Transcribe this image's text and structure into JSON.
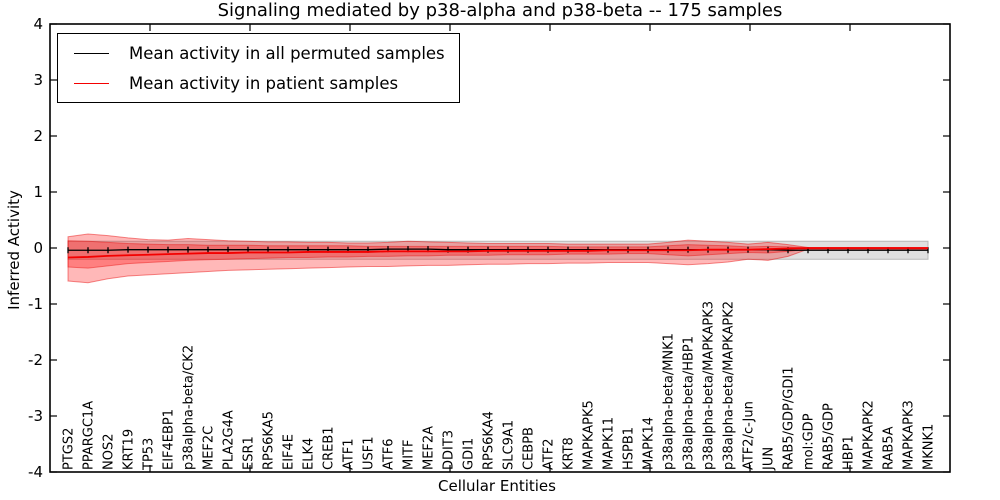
{
  "chart_data": {
    "type": "line",
    "title": "Signaling mediated by p38-alpha and p38-beta -- 175 samples",
    "xlabel": "Cellular Entities",
    "ylabel": "Inferred Activity",
    "ylim": [
      -4,
      4
    ],
    "yticks": [
      -4,
      -3,
      -2,
      -1,
      0,
      1,
      2,
      3,
      4
    ],
    "grid": false,
    "legend_position": "upper left",
    "categories": [
      "PTGS2",
      "PPARGC1A",
      "NOS2",
      "KRT19",
      "TP53",
      "EIF4EBP1",
      "p38alpha-beta/CK2",
      "MEF2C",
      "PLA2G4A",
      "ESR1",
      "RPS6KA5",
      "EIF4E",
      "ELK4",
      "CREB1",
      "ATF1",
      "USF1",
      "ATF6",
      "MITF",
      "MEF2A",
      "DDIT3",
      "GDI1",
      "RPS6KA4",
      "SLC9A1",
      "CEBPB",
      "ATF2",
      "KRT8",
      "MAPKAPK5",
      "MAPK11",
      "HSPB1",
      "MAPK14",
      "p38alpha-beta/MNK1",
      "p38alpha-beta/HBP1",
      "p38alpha-beta/MAPKAPK3",
      "p38alpha-beta/MAPKAPK2",
      "ATF2/c-Jun",
      "JUN",
      "RAB5/GDP/GDI1",
      "mol:GDP",
      "RAB5/GDP",
      "HBP1",
      "MAPKAPK2",
      "RAB5A",
      "MAPKAPK3",
      "MKNK1"
    ],
    "series": [
      {
        "name": "Mean activity in all permuted samples",
        "color": "#000000",
        "marker": "vline",
        "values": [
          -0.04,
          -0.04,
          -0.04,
          -0.03,
          -0.03,
          -0.03,
          -0.03,
          -0.03,
          -0.03,
          -0.03,
          -0.03,
          -0.03,
          -0.03,
          -0.03,
          -0.03,
          -0.03,
          -0.02,
          -0.02,
          -0.02,
          -0.03,
          -0.03,
          -0.03,
          -0.03,
          -0.03,
          -0.03,
          -0.03,
          -0.03,
          -0.03,
          -0.03,
          -0.03,
          -0.03,
          -0.03,
          -0.03,
          -0.03,
          -0.03,
          -0.03,
          -0.04,
          -0.04,
          -0.04,
          -0.04,
          -0.04,
          -0.04,
          -0.04,
          -0.04
        ]
      },
      {
        "name": "Mean activity in patient samples",
        "color": "#f40000",
        "marker": "none",
        "values": [
          -0.17,
          -0.16,
          -0.14,
          -0.13,
          -0.12,
          -0.11,
          -0.1,
          -0.09,
          -0.09,
          -0.08,
          -0.08,
          -0.08,
          -0.07,
          -0.07,
          -0.07,
          -0.07,
          -0.06,
          -0.06,
          -0.06,
          -0.06,
          -0.06,
          -0.05,
          -0.05,
          -0.05,
          -0.05,
          -0.05,
          -0.05,
          -0.04,
          -0.04,
          -0.04,
          -0.04,
          -0.04,
          -0.03,
          -0.03,
          -0.03,
          -0.02,
          -0.01,
          0.0,
          0.0,
          0.0,
          0.0,
          0.0,
          0.0,
          0.0
        ]
      }
    ],
    "bands": [
      {
        "name": "permuted-samples-std-band",
        "fill": "#e0e0e0",
        "stroke": "#b8b8b8",
        "upper": 0.12,
        "lower": -0.2
      },
      {
        "name": "patient-samples-outer-band",
        "fill": "rgba(255,0,0,0.28)",
        "stroke": "rgba(230,0,0,0.45)",
        "upper": [
          0.2,
          0.25,
          0.22,
          0.18,
          0.15,
          0.14,
          0.17,
          0.15,
          0.13,
          0.12,
          0.11,
          0.11,
          0.1,
          0.1,
          0.09,
          0.09,
          0.1,
          0.12,
          0.11,
          0.1,
          0.09,
          0.08,
          0.08,
          0.08,
          0.08,
          0.07,
          0.07,
          0.07,
          0.07,
          0.07,
          0.1,
          0.14,
          0.12,
          0.1,
          0.07,
          0.1,
          0.06,
          0.01,
          0.01,
          0.01,
          0.01,
          0.01,
          0.01,
          0.01
        ],
        "lower": [
          -0.59,
          -0.62,
          -0.55,
          -0.5,
          -0.48,
          -0.46,
          -0.44,
          -0.42,
          -0.4,
          -0.39,
          -0.38,
          -0.37,
          -0.36,
          -0.35,
          -0.34,
          -0.33,
          -0.33,
          -0.32,
          -0.31,
          -0.31,
          -0.3,
          -0.29,
          -0.29,
          -0.28,
          -0.28,
          -0.27,
          -0.27,
          -0.26,
          -0.26,
          -0.26,
          -0.28,
          -0.3,
          -0.28,
          -0.25,
          -0.2,
          -0.22,
          -0.15,
          -0.02,
          -0.02,
          -0.02,
          -0.02,
          -0.02,
          -0.02,
          -0.02
        ]
      },
      {
        "name": "patient-samples-inner-band",
        "fill": "rgba(255,0,0,0.30)",
        "stroke": "rgba(230,0,0,0.40)",
        "upper": [
          0.13,
          0.12,
          0.1,
          0.08,
          0.07,
          0.06,
          0.06,
          0.05,
          0.05,
          0.05,
          0.04,
          0.04,
          0.04,
          0.04,
          0.04,
          0.03,
          0.03,
          0.03,
          0.03,
          0.03,
          0.03,
          0.03,
          0.03,
          0.03,
          0.03,
          0.02,
          0.02,
          0.02,
          0.02,
          0.02,
          0.04,
          0.06,
          0.05,
          0.04,
          0.02,
          0.03,
          0.02,
          0.0,
          0.0,
          0.0,
          0.0,
          0.0,
          0.0,
          0.0
        ],
        "lower": [
          -0.34,
          -0.36,
          -0.32,
          -0.28,
          -0.26,
          -0.24,
          -0.22,
          -0.21,
          -0.2,
          -0.19,
          -0.18,
          -0.17,
          -0.17,
          -0.16,
          -0.16,
          -0.15,
          -0.15,
          -0.14,
          -0.14,
          -0.13,
          -0.13,
          -0.13,
          -0.12,
          -0.12,
          -0.12,
          -0.11,
          -0.11,
          -0.11,
          -0.1,
          -0.1,
          -0.12,
          -0.14,
          -0.12,
          -0.1,
          -0.08,
          -0.09,
          -0.06,
          -0.02,
          -0.02,
          -0.02,
          -0.02,
          -0.02,
          -0.02,
          -0.02
        ]
      }
    ]
  }
}
